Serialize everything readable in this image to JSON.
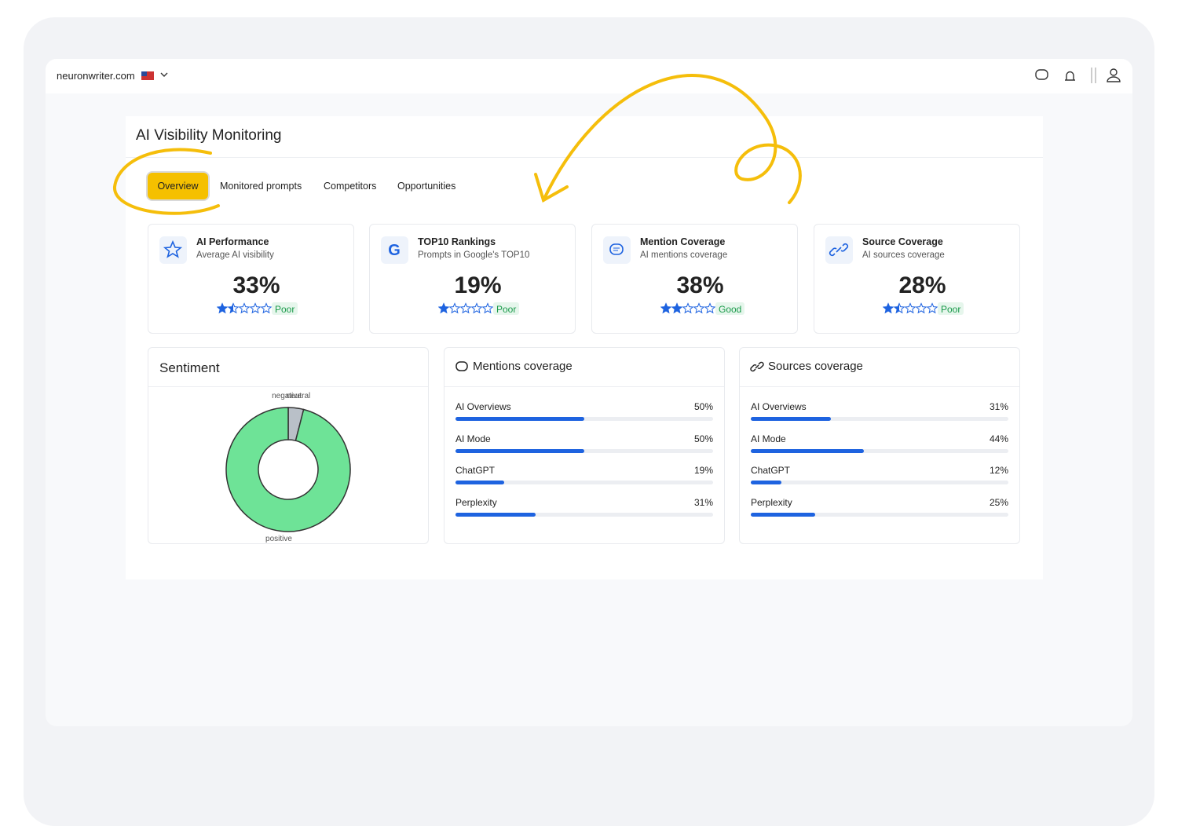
{
  "header": {
    "site": "neuronwriter.com"
  },
  "page": {
    "title": "AI Visibility Monitoring",
    "tabs": [
      "Overview",
      "Monitored prompts",
      "Competitors",
      "Opportunities"
    ]
  },
  "metrics": [
    {
      "title": "AI Performance",
      "subtitle": "Average AI visibility",
      "value": 33,
      "value_label": "33%",
      "stars": 1.5,
      "rating": "Poor"
    },
    {
      "title": "TOP10 Rankings",
      "subtitle": "Prompts in Google's TOP10",
      "value": 19,
      "value_label": "19%",
      "stars": 1,
      "rating": "Poor"
    },
    {
      "title": "Mention Coverage",
      "subtitle": "AI mentions coverage",
      "value": 38,
      "value_label": "38%",
      "stars": 2,
      "rating": "Good"
    },
    {
      "title": "Source Coverage",
      "subtitle": "AI sources coverage",
      "value": 28,
      "value_label": "28%",
      "stars": 1.5,
      "rating": "Poor"
    }
  ],
  "sentiment": {
    "title": "Sentiment",
    "slices": [
      {
        "name": "negative",
        "value": 0,
        "color": "#e57373"
      },
      {
        "name": "neutral",
        "value": 4,
        "color": "#b9c0c8"
      },
      {
        "name": "positive",
        "value": 96,
        "color": "#6ee397"
      }
    ]
  },
  "mentions": {
    "title": "Mentions coverage",
    "rows": [
      {
        "name": "AI Overviews",
        "value": 50,
        "label": "50%"
      },
      {
        "name": "AI Mode",
        "value": 50,
        "label": "50%"
      },
      {
        "name": "ChatGPT",
        "value": 19,
        "label": "19%"
      },
      {
        "name": "Perplexity",
        "value": 31,
        "label": "31%"
      }
    ]
  },
  "sources": {
    "title": "Sources coverage",
    "rows": [
      {
        "name": "AI Overviews",
        "value": 31,
        "label": "31%"
      },
      {
        "name": "AI Mode",
        "value": 44,
        "label": "44%"
      },
      {
        "name": "ChatGPT",
        "value": 12,
        "label": "12%"
      },
      {
        "name": "Perplexity",
        "value": 25,
        "label": "25%"
      }
    ]
  }
}
